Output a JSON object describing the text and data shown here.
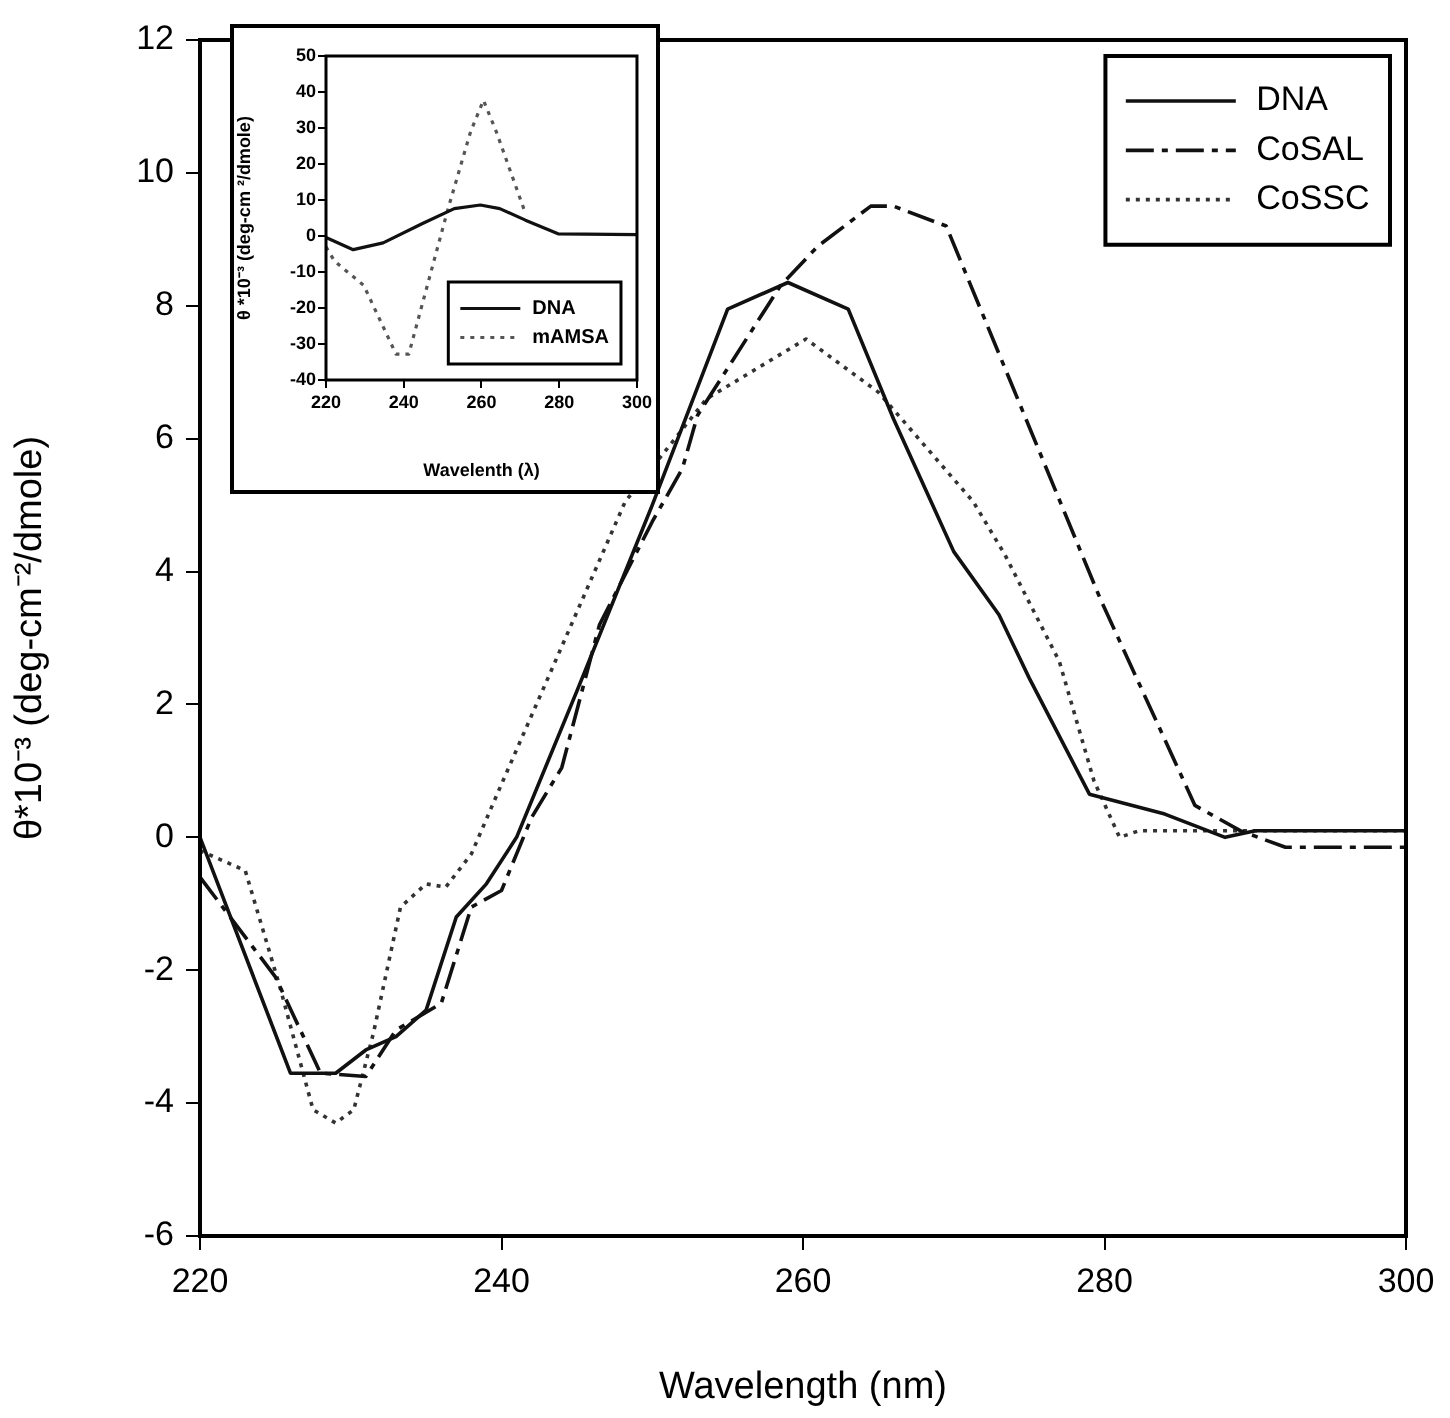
{
  "chart_data": [
    {
      "type": "line",
      "xlabel": "Wavelength (nm)",
      "ylabel": "θ*10⁻³ (deg-cm⁻²/dmole)",
      "xlim": [
        220,
        300
      ],
      "xticks": [
        220,
        240,
        260,
        280,
        300
      ],
      "ylim": [
        -6,
        12
      ],
      "yticks": [
        -6,
        -4,
        -2,
        0,
        2,
        4,
        6,
        8,
        10,
        12
      ],
      "grid": false,
      "legend": "top right",
      "marker": "none",
      "series": [
        {
          "name": "DNA",
          "color": "#111111",
          "line_style": "solid",
          "x": [
            220,
            226,
            229,
            231,
            233,
            235,
            237,
            239,
            241,
            245,
            250,
            255,
            259,
            263,
            266,
            270,
            273,
            275,
            279,
            284,
            288,
            290,
            300
          ],
          "values": [
            0,
            -3.55,
            -3.55,
            -3.2,
            -3,
            -2.6,
            -1.2,
            -0.7,
            0,
            2.2,
            5,
            7.95,
            8.35,
            7.95,
            6.3,
            4.3,
            3.35,
            2.4,
            0.65,
            0.35,
            0,
            0.1,
            0.1
          ]
        },
        {
          "name": "CoSAL",
          "color": "#111111",
          "line_style": "dashed",
          "x": [
            220,
            225,
            228,
            231,
            233,
            236,
            238,
            240,
            242,
            244,
            246.5,
            250,
            252,
            253,
            258.5,
            261,
            264.5,
            266,
            269.5,
            279.7,
            286,
            289,
            292,
            300
          ],
          "values": [
            -0.6,
            -2.1,
            -3.55,
            -3.6,
            -2.9,
            -2.5,
            -1.05,
            -0.8,
            0.3,
            1.05,
            3.2,
            4.75,
            5.55,
            6.35,
            8.3,
            8.9,
            9.5,
            9.5,
            9.2,
            3.6,
            0.48,
            0.1,
            -0.15,
            -0.15
          ]
        },
        {
          "name": "CoSSC",
          "color": "#333333",
          "line_style": "dotted",
          "x": [
            220,
            223,
            225.3,
            227.5,
            229,
            230.2,
            231.5,
            233.3,
            235,
            236.3,
            238,
            240,
            248.2,
            253.6,
            260.2,
            265,
            271.3,
            273.4,
            277,
            279.3,
            281,
            282.3,
            300
          ],
          "values": [
            -0.2,
            -0.5,
            -2.25,
            -4.1,
            -4.3,
            -4.1,
            -2.95,
            -1.05,
            -0.7,
            -0.75,
            -0.25,
            0.8,
            5.05,
            6.6,
            7.5,
            6.7,
            5.05,
            4.25,
            2.65,
            0.85,
            0,
            0.1,
            0.1
          ]
        }
      ]
    },
    {
      "type": "line",
      "xlabel": "Wavelenth (λ)",
      "ylabel": "θ *10⁻³ (deg-cm ²/dmole)",
      "xlim": [
        220,
        300
      ],
      "xticks": [
        220,
        240,
        260,
        280,
        300
      ],
      "ylim": [
        -40,
        50
      ],
      "yticks": [
        -40,
        -30,
        -20,
        -10,
        0,
        10,
        20,
        30,
        40,
        50
      ],
      "grid": false,
      "legend": "bottom right",
      "marker": "none",
      "series": [
        {
          "name": "DNA",
          "color": "#111111",
          "line_style": "solid",
          "x": [
            220,
            227,
            234.7,
            244.7,
            253,
            259.7,
            264.7,
            271.3,
            279.7,
            300
          ],
          "values": [
            -0.4,
            -3.8,
            -1.9,
            3.4,
            7.6,
            8.6,
            7.6,
            4.4,
            0.6,
            0.4
          ]
        },
        {
          "name": "mAMSA",
          "color": "#555555",
          "line_style": "dotted",
          "x": [
            220,
            222.2,
            229.7,
            238,
            241.3,
            251.3,
            257.2,
            260.5,
            263.8,
            271.3
          ],
          "values": [
            -3,
            -7,
            -13.7,
            -32.8,
            -32.8,
            7.2,
            29,
            37.7,
            29,
            6.3
          ]
        }
      ]
    }
  ]
}
